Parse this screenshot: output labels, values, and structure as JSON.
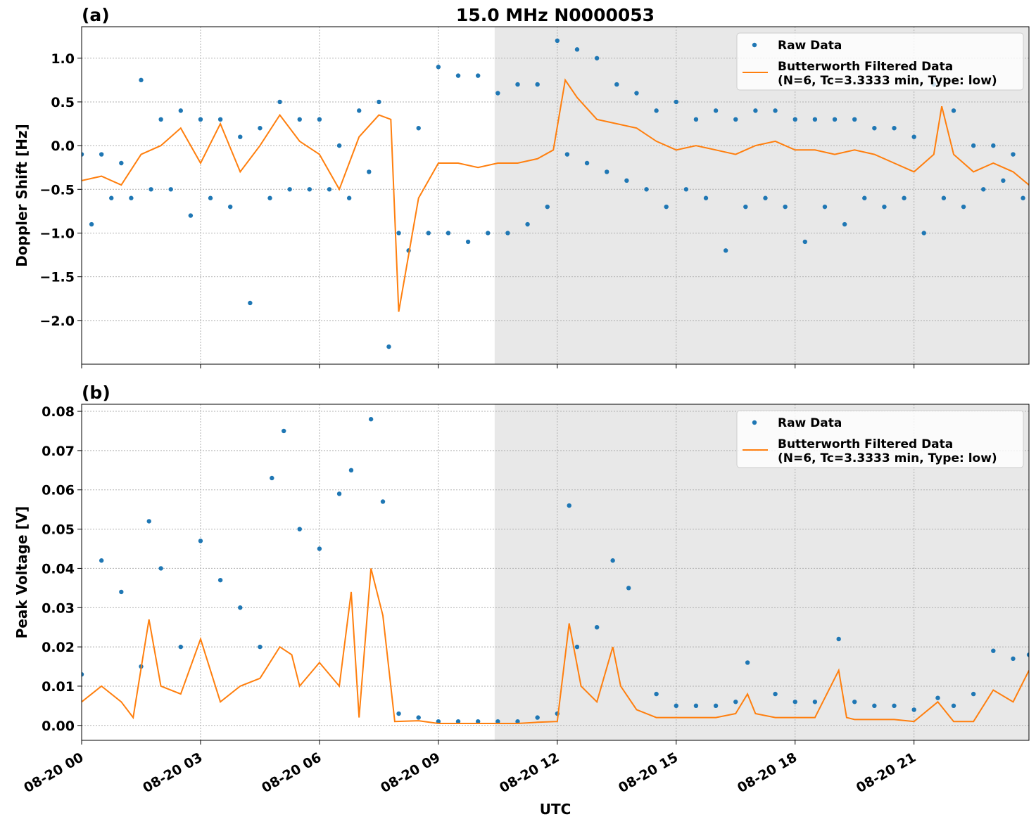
{
  "chart_data": [
    {
      "type": "line",
      "title": "15.0 MHz N0000053",
      "panel_label": "(a)",
      "y_label": "Doppler Shift [Hz]",
      "xlim": [
        0,
        23.9
      ],
      "ylim": [
        -2.5,
        1.36
      ],
      "shaded_span": [
        10.42,
        23.9
      ],
      "grid": true,
      "legend": "upper right",
      "xticks": [
        0,
        3,
        6,
        9,
        12,
        15,
        18,
        21
      ],
      "yticks": [
        {
          "value": -2,
          "label": "−2.0"
        },
        {
          "value": -1.5,
          "label": "−1.5"
        },
        {
          "value": -1,
          "label": "−1.0"
        },
        {
          "value": -0.5,
          "label": "−0.5"
        },
        {
          "value": 0,
          "label": "0.0"
        },
        {
          "value": 0.5,
          "label": "0.5"
        },
        {
          "value": 1,
          "label": "1.0"
        }
      ],
      "series": [
        {
          "name": "Raw Data",
          "style": "marker",
          "color": "#1f77b4",
          "x": [
            0,
            0.5,
            1,
            1.5,
            2,
            2.5,
            3,
            3.5,
            4,
            4.5,
            5,
            5.5,
            6,
            6.5,
            7,
            7.5,
            8,
            8.5,
            9,
            9.5,
            10,
            10.5,
            11,
            11.5,
            12,
            12.5,
            13,
            13.5,
            14,
            14.5,
            15,
            15.5,
            16,
            16.5,
            17,
            17.5,
            18,
            18.5,
            19,
            19.5,
            20,
            20.5,
            21,
            21.5,
            22,
            22.5,
            23,
            23.5,
            0.25,
            0.75,
            1.25,
            1.75,
            2.25,
            2.75,
            3.25,
            3.75,
            4.25,
            4.75,
            5.25,
            5.75,
            6.25,
            6.75,
            7.25,
            7.75,
            8.25,
            8.75,
            9.25,
            9.75,
            10.25,
            10.75,
            11.25,
            11.75,
            12.25,
            12.75,
            13.25,
            13.75,
            14.25,
            14.75,
            15.25,
            15.75,
            16.25,
            16.75,
            17.25,
            17.75,
            18.25,
            18.75,
            19.25,
            19.75,
            20.25,
            20.75,
            21.25,
            21.75,
            22.25,
            22.75,
            23.25,
            23.75
          ],
          "values": [
            -0.1,
            -0.1,
            -0.2,
            0.75,
            0.3,
            0.4,
            0.3,
            0.3,
            0.1,
            0.2,
            0.5,
            0.3,
            0.3,
            0.0,
            0.4,
            0.5,
            -1.0,
            0.2,
            0.9,
            0.8,
            0.8,
            0.6,
            0.7,
            0.7,
            1.2,
            1.1,
            1.0,
            0.7,
            0.6,
            0.4,
            0.5,
            0.3,
            0.4,
            0.3,
            0.4,
            0.4,
            0.3,
            0.3,
            0.3,
            0.3,
            0.2,
            0.2,
            0.1,
            0.7,
            0.4,
            0.0,
            0.0,
            -0.1,
            -0.9,
            -0.6,
            -0.6,
            -0.5,
            -0.5,
            -0.8,
            -0.6,
            -0.7,
            -1.8,
            -0.6,
            -0.5,
            -0.5,
            -0.5,
            -0.6,
            -0.3,
            -2.3,
            -1.2,
            -1.0,
            -1.0,
            -1.1,
            -1.0,
            -1.0,
            -0.9,
            -0.7,
            -0.1,
            -0.2,
            -0.3,
            -0.4,
            -0.5,
            -0.7,
            -0.5,
            -0.6,
            -1.2,
            -0.7,
            -0.6,
            -0.7,
            -1.1,
            -0.7,
            -0.9,
            -0.6,
            -0.7,
            -0.6,
            -1.0,
            -0.6,
            -0.7,
            -0.5,
            -0.4,
            -0.6
          ]
        },
        {
          "name": "Butterworth Filtered Data\n(N=6, Tc=3.3333 min, Type: low)",
          "style": "line",
          "color": "#ff7f0e",
          "x": [
            0,
            0.5,
            1,
            1.5,
            2,
            2.5,
            3,
            3.5,
            4,
            4.5,
            5,
            5.5,
            6,
            6.5,
            7,
            7.5,
            7.8,
            8,
            8.5,
            9,
            9.5,
            10,
            10.5,
            11,
            11.5,
            11.9,
            12.2,
            12.5,
            13,
            13.5,
            14,
            14.5,
            15,
            15.5,
            16,
            16.5,
            17,
            17.5,
            18,
            18.5,
            19,
            19.5,
            20,
            20.5,
            21,
            21.5,
            21.7,
            22,
            22.5,
            23,
            23.5,
            23.9
          ],
          "values": [
            -0.4,
            -0.35,
            -0.45,
            -0.1,
            0.0,
            0.2,
            -0.2,
            0.25,
            -0.3,
            0.0,
            0.35,
            0.05,
            -0.1,
            -0.5,
            0.1,
            0.35,
            0.3,
            -1.9,
            -0.6,
            -0.2,
            -0.2,
            -0.25,
            -0.2,
            -0.2,
            -0.15,
            -0.05,
            0.75,
            0.55,
            0.3,
            0.25,
            0.2,
            0.05,
            -0.05,
            0.0,
            -0.05,
            -0.1,
            0.0,
            0.05,
            -0.05,
            -0.05,
            -0.1,
            -0.05,
            -0.1,
            -0.2,
            -0.3,
            -0.1,
            0.45,
            -0.1,
            -0.3,
            -0.2,
            -0.3,
            -0.45
          ]
        }
      ]
    },
    {
      "type": "line",
      "panel_label": "(b)",
      "y_label": "Peak Voltage [V]",
      "x_label": "UTC",
      "xlim": [
        0,
        23.9
      ],
      "ylim": [
        -0.0038,
        0.0818
      ],
      "shaded_span": [
        10.42,
        23.9
      ],
      "grid": true,
      "legend": "upper right",
      "xticks": [
        {
          "value": 0,
          "label": "08-20 00"
        },
        {
          "value": 3,
          "label": "08-20 03"
        },
        {
          "value": 6,
          "label": "08-20 06"
        },
        {
          "value": 9,
          "label": "08-20 09"
        },
        {
          "value": 12,
          "label": "08-20 12"
        },
        {
          "value": 15,
          "label": "08-20 15"
        },
        {
          "value": 18,
          "label": "08-20 18"
        },
        {
          "value": 21,
          "label": "08-20 21"
        }
      ],
      "yticks": [
        {
          "value": 0,
          "label": "0.00"
        },
        0.01,
        0.02,
        0.03,
        0.04,
        0.05,
        0.06,
        0.07,
        0.08
      ],
      "series": [
        {
          "name": "Raw Data",
          "style": "marker",
          "color": "#1f77b4",
          "x": [
            0,
            0.5,
            1,
            1.5,
            1.7,
            2,
            2.5,
            3,
            3.5,
            4,
            4.5,
            4.8,
            5.1,
            5.5,
            6,
            6.5,
            6.8,
            7.3,
            7.6,
            8,
            8.5,
            9,
            9.5,
            10,
            10.5,
            11,
            11.5,
            12,
            12.3,
            12.5,
            13,
            13.4,
            13.8,
            14.5,
            15,
            15.5,
            16,
            16.5,
            16.8,
            17.5,
            18,
            18.5,
            19.1,
            19.5,
            20,
            20.5,
            21,
            21.6,
            22,
            22.5,
            23,
            23.5,
            23.9
          ],
          "values": [
            0.013,
            0.042,
            0.034,
            0.015,
            0.052,
            0.04,
            0.02,
            0.047,
            0.037,
            0.03,
            0.02,
            0.063,
            0.075,
            0.05,
            0.045,
            0.059,
            0.065,
            0.078,
            0.057,
            0.003,
            0.002,
            0.001,
            0.001,
            0.001,
            0.001,
            0.001,
            0.002,
            0.003,
            0.056,
            0.02,
            0.025,
            0.042,
            0.035,
            0.008,
            0.005,
            0.005,
            0.005,
            0.006,
            0.016,
            0.008,
            0.006,
            0.006,
            0.022,
            0.006,
            0.005,
            0.005,
            0.004,
            0.007,
            0.005,
            0.008,
            0.019,
            0.017,
            0.018
          ]
        },
        {
          "name": "Butterworth Filtered Data\n(N=6, Tc=3.3333 min, Type: low)",
          "style": "line",
          "color": "#ff7f0e",
          "x": [
            0,
            0.5,
            1,
            1.3,
            1.7,
            2,
            2.5,
            3,
            3.5,
            4,
            4.5,
            5,
            5.3,
            5.5,
            6,
            6.5,
            6.8,
            7,
            7.3,
            7.6,
            7.9,
            8.5,
            9,
            9.5,
            10,
            10.5,
            11,
            11.5,
            12,
            12.3,
            12.6,
            13,
            13.4,
            13.6,
            14,
            14.5,
            15,
            15.5,
            16,
            16.5,
            16.8,
            17,
            17.5,
            18,
            18.5,
            19.1,
            19.3,
            19.5,
            20,
            20.5,
            21,
            21.6,
            22,
            22.5,
            23,
            23.5,
            23.9
          ],
          "values": [
            0.006,
            0.01,
            0.006,
            0.002,
            0.027,
            0.01,
            0.008,
            0.022,
            0.006,
            0.01,
            0.012,
            0.02,
            0.018,
            0.01,
            0.016,
            0.01,
            0.034,
            0.002,
            0.04,
            0.028,
            0.001,
            0.0012,
            0.0005,
            0.0005,
            0.0005,
            0.0005,
            0.0005,
            0.0008,
            0.001,
            0.026,
            0.01,
            0.006,
            0.02,
            0.01,
            0.004,
            0.002,
            0.002,
            0.002,
            0.002,
            0.003,
            0.008,
            0.003,
            0.002,
            0.002,
            0.002,
            0.014,
            0.002,
            0.0015,
            0.0015,
            0.0015,
            0.001,
            0.006,
            0.001,
            0.001,
            0.009,
            0.006,
            0.014
          ]
        }
      ]
    }
  ]
}
